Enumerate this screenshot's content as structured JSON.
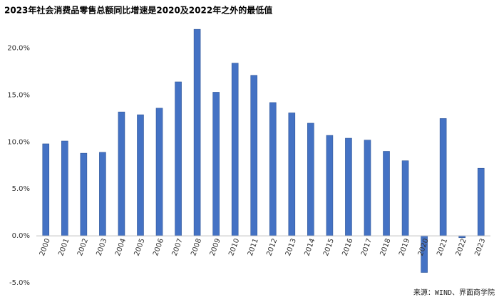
{
  "chart_data": {
    "type": "bar",
    "title": "2023年社会消费品零售总额同比增速是2020及2022年之外的最低值",
    "source": "来源：WIND、界面商学院",
    "categories": [
      "2000",
      "2001",
      "2002",
      "2003",
      "2004",
      "2005",
      "2006",
      "2007",
      "2008",
      "2009",
      "2010",
      "2011",
      "2012",
      "2013",
      "2014",
      "2015",
      "2016",
      "2017",
      "2018",
      "2019",
      "2020",
      "2021",
      "2022",
      "2023"
    ],
    "values": [
      9.8,
      10.1,
      8.8,
      8.9,
      13.2,
      12.9,
      13.6,
      16.4,
      22.0,
      15.3,
      18.4,
      17.1,
      14.2,
      13.1,
      12.0,
      10.7,
      10.4,
      10.2,
      9.0,
      8.0,
      -3.9,
      12.5,
      -0.2,
      7.2
    ],
    "color": "#4472c4",
    "ylim": [
      -5,
      23
    ],
    "yticks": [
      {
        "value": -5,
        "label": "-5.0%"
      },
      {
        "value": 0,
        "label": "0.0%"
      },
      {
        "value": 5,
        "label": "5.0%"
      },
      {
        "value": 10,
        "label": "10.0%"
      },
      {
        "value": 15,
        "label": "15.0%"
      },
      {
        "value": 20,
        "label": "20.0%"
      }
    ],
    "grid": false
  }
}
